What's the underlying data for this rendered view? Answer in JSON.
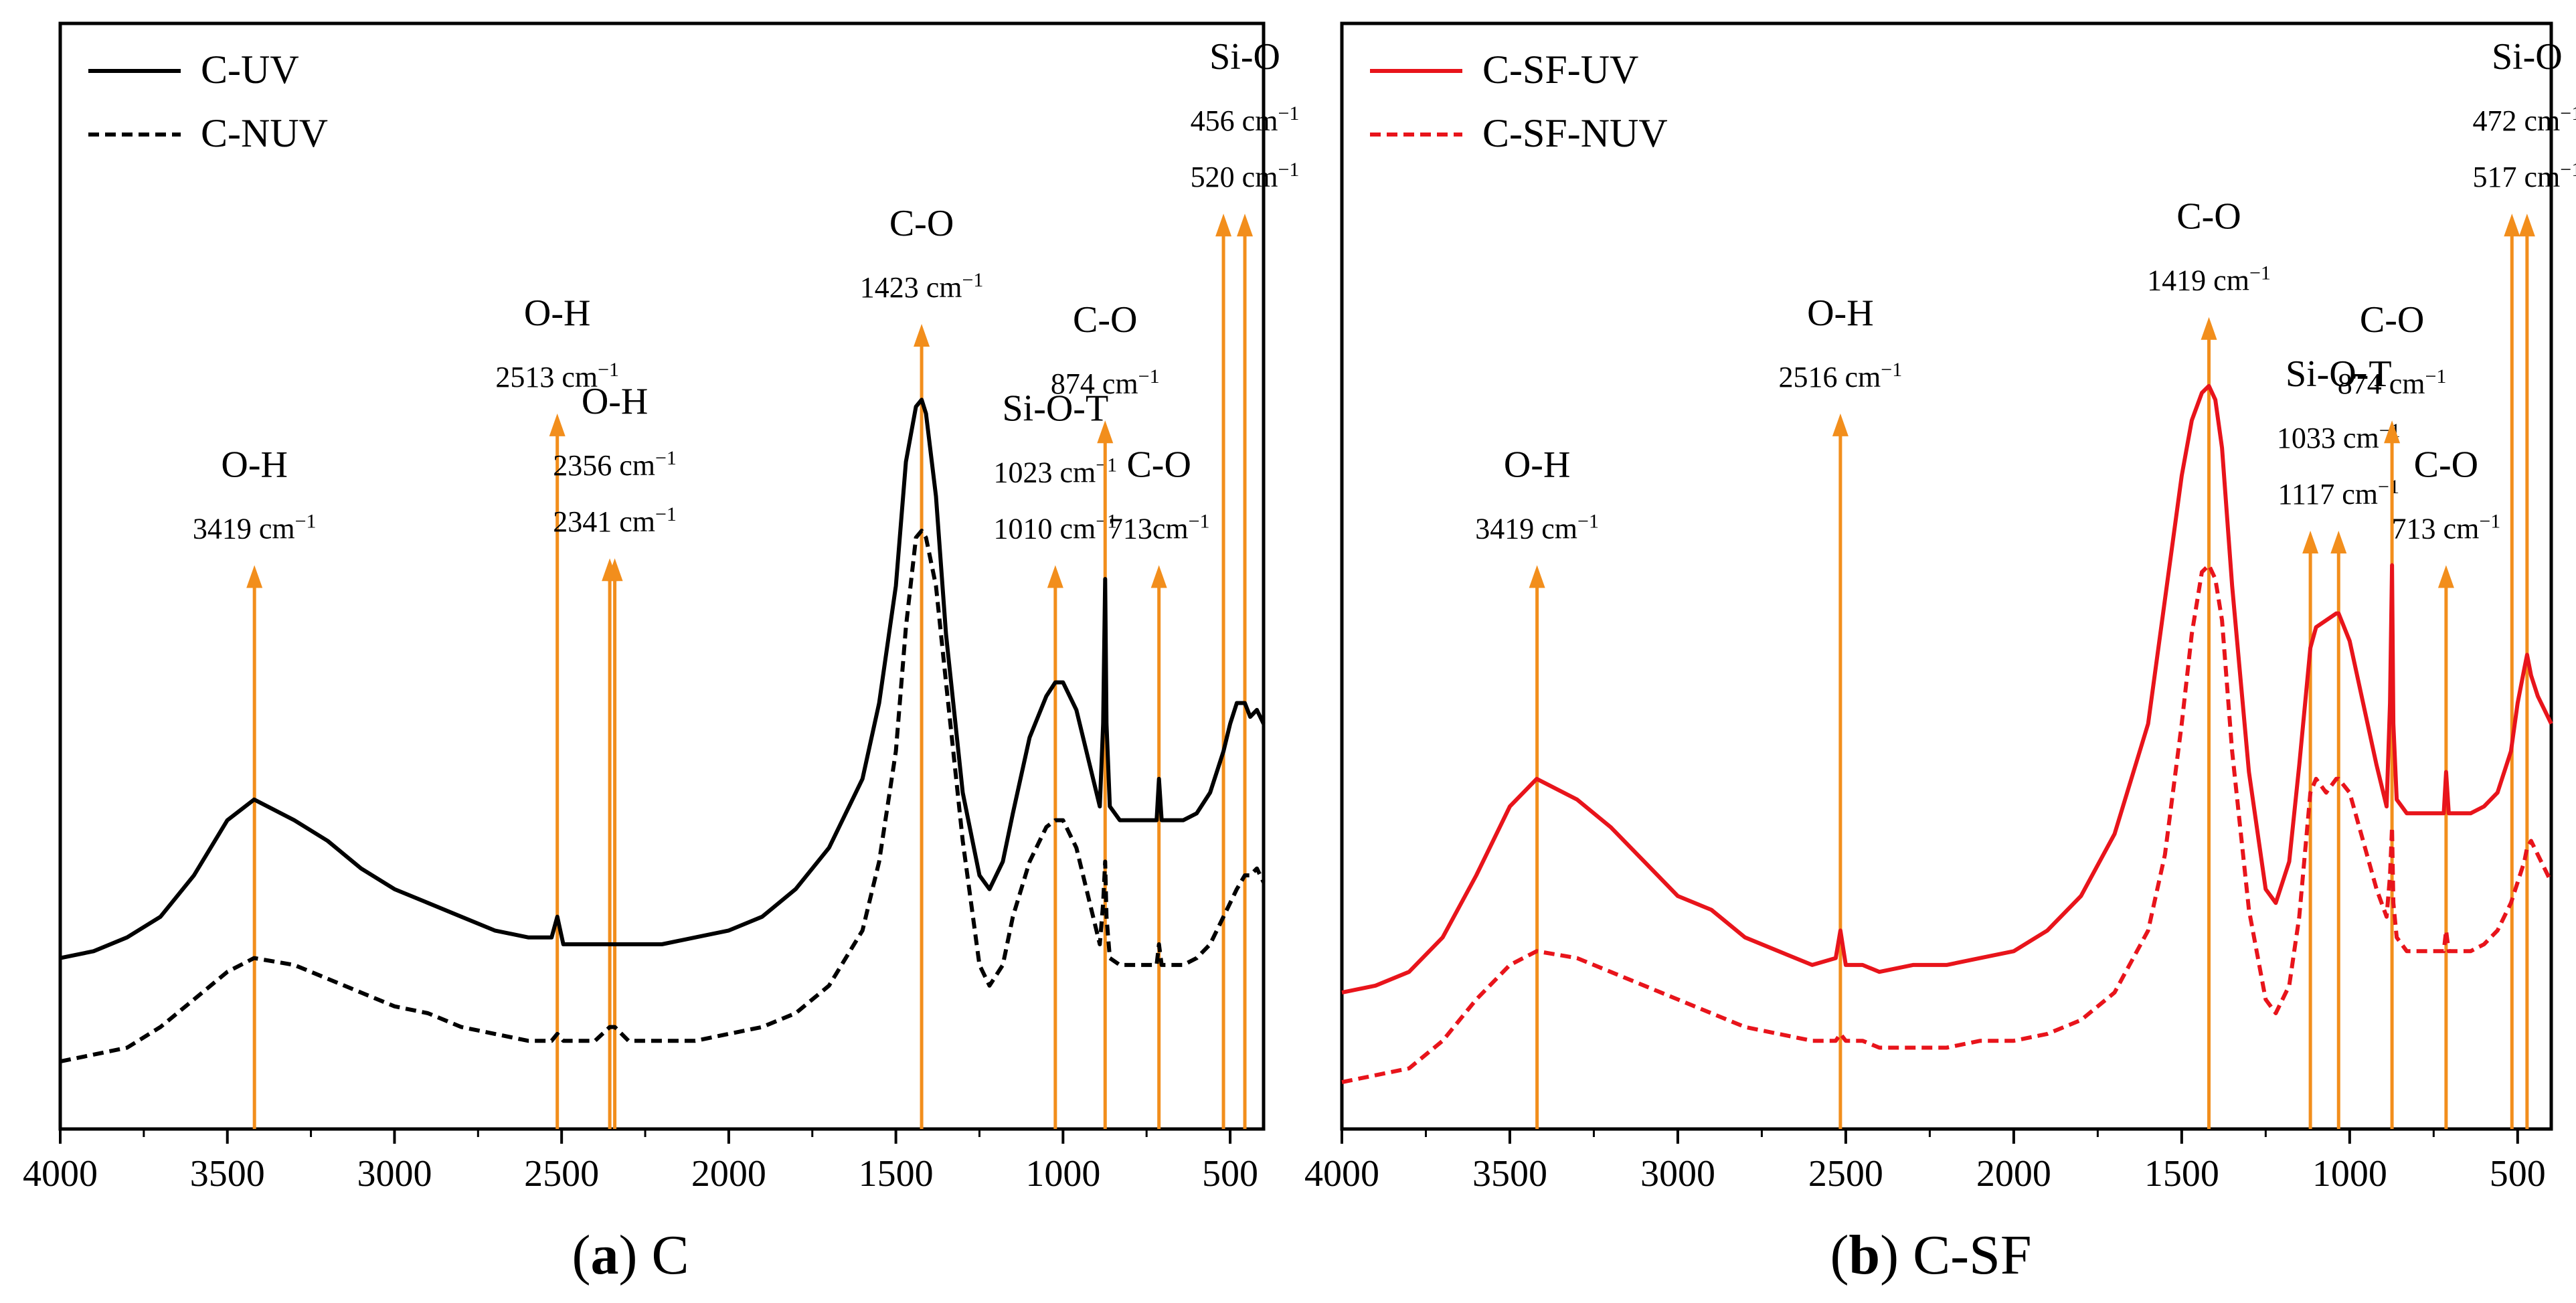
{
  "chart_data": [
    {
      "type": "line",
      "panel_id": "a",
      "panel_name": "C",
      "xlabel": "",
      "ylabel": "",
      "xlim": [
        4000,
        400
      ],
      "x_ticks": [
        4000,
        3500,
        3000,
        2500,
        2000,
        1500,
        1000,
        500
      ],
      "y_ticks": [],
      "grid": false,
      "legend_position": "top-left",
      "line_color": "#000000",
      "marker_color": "#F28E1C",
      "series": [
        {
          "name": "C-UV",
          "style": "solid",
          "x": [
            4000,
            3900,
            3800,
            3700,
            3600,
            3500,
            3420,
            3300,
            3200,
            3100,
            3000,
            2900,
            2800,
            2700,
            2600,
            2530,
            2513,
            2495,
            2450,
            2400,
            2300,
            2200,
            2100,
            2000,
            1900,
            1800,
            1700,
            1600,
            1550,
            1500,
            1470,
            1440,
            1423,
            1410,
            1380,
            1350,
            1300,
            1250,
            1220,
            1180,
            1150,
            1100,
            1050,
            1023,
            1000,
            960,
            920,
            890,
            880,
            874,
            870,
            860,
            830,
            800,
            760,
            720,
            713,
            705,
            680,
            640,
            600,
            560,
            520,
            500,
            480,
            456,
            440,
            420,
            400
          ],
          "y": [
            0.18,
            0.19,
            0.21,
            0.24,
            0.3,
            0.38,
            0.41,
            0.38,
            0.35,
            0.31,
            0.28,
            0.26,
            0.24,
            0.22,
            0.21,
            0.21,
            0.24,
            0.2,
            0.2,
            0.2,
            0.2,
            0.2,
            0.21,
            0.22,
            0.24,
            0.28,
            0.34,
            0.44,
            0.55,
            0.72,
            0.9,
            0.98,
            0.99,
            0.97,
            0.85,
            0.65,
            0.42,
            0.3,
            0.28,
            0.32,
            0.39,
            0.5,
            0.56,
            0.58,
            0.58,
            0.54,
            0.46,
            0.4,
            0.52,
            0.73,
            0.52,
            0.4,
            0.38,
            0.38,
            0.38,
            0.38,
            0.44,
            0.38,
            0.38,
            0.38,
            0.39,
            0.42,
            0.48,
            0.52,
            0.55,
            0.55,
            0.53,
            0.54,
            0.52
          ]
        },
        {
          "name": "C-NUV",
          "style": "dashed",
          "x": [
            4000,
            3900,
            3800,
            3700,
            3600,
            3500,
            3420,
            3300,
            3200,
            3100,
            3000,
            2900,
            2800,
            2700,
            2600,
            2530,
            2513,
            2495,
            2450,
            2400,
            2356,
            2341,
            2300,
            2200,
            2100,
            2000,
            1900,
            1800,
            1700,
            1600,
            1550,
            1500,
            1470,
            1440,
            1423,
            1410,
            1380,
            1350,
            1300,
            1250,
            1220,
            1180,
            1150,
            1100,
            1050,
            1023,
            1000,
            960,
            920,
            890,
            880,
            874,
            870,
            860,
            830,
            800,
            760,
            720,
            713,
            705,
            680,
            640,
            600,
            560,
            520,
            500,
            480,
            456,
            440,
            420,
            400
          ],
          "y": [
            0.03,
            0.04,
            0.05,
            0.08,
            0.12,
            0.16,
            0.18,
            0.17,
            0.15,
            0.13,
            0.11,
            0.1,
            0.08,
            0.07,
            0.06,
            0.06,
            0.07,
            0.06,
            0.06,
            0.06,
            0.08,
            0.08,
            0.06,
            0.06,
            0.06,
            0.07,
            0.08,
            0.1,
            0.14,
            0.22,
            0.32,
            0.48,
            0.66,
            0.79,
            0.8,
            0.79,
            0.72,
            0.58,
            0.35,
            0.17,
            0.14,
            0.17,
            0.24,
            0.32,
            0.37,
            0.38,
            0.38,
            0.34,
            0.26,
            0.2,
            0.26,
            0.32,
            0.24,
            0.18,
            0.17,
            0.17,
            0.17,
            0.17,
            0.2,
            0.17,
            0.17,
            0.17,
            0.18,
            0.2,
            0.24,
            0.26,
            0.28,
            0.3,
            0.3,
            0.31,
            0.29
          ]
        }
      ],
      "annotations": [
        {
          "wavenumber": 3419,
          "top": 0.75,
          "labels": [
            "O-H",
            "3419 cm"
          ]
        },
        {
          "wavenumber": 2513,
          "top": 0.97,
          "labels": [
            "O-H",
            "2513 cm"
          ]
        },
        {
          "wavenumber": 2356,
          "top": 0.76,
          "labels": []
        },
        {
          "wavenumber": 2341,
          "top": 0.76,
          "labels": [
            "O-H",
            "2356 cm",
            "2341 cm"
          ]
        },
        {
          "wavenumber": 1423,
          "top": 1.1,
          "labels": [
            "C-O",
            "1423 cm"
          ]
        },
        {
          "wavenumber": 1023,
          "top": 0.75,
          "labels": [
            "Si-O-T",
            "1023 cm",
            "1010 cm"
          ]
        },
        {
          "wavenumber": 874,
          "top": 0.96,
          "labels": [
            "C-O",
            "874 cm"
          ]
        },
        {
          "wavenumber": 713,
          "top": 0.75,
          "labels": [
            "C-O",
            "713cm"
          ]
        },
        {
          "wavenumber": 520,
          "top": 1.26,
          "labels": []
        },
        {
          "wavenumber": 456,
          "top": 1.26,
          "labels": [
            "Si-O",
            "456 cm",
            "520 cm"
          ]
        }
      ],
      "unit_superscript": "−1"
    },
    {
      "type": "line",
      "panel_id": "b",
      "panel_name": "C-SF",
      "xlabel": "",
      "ylabel": "",
      "xlim": [
        4000,
        400
      ],
      "x_ticks": [
        4000,
        3500,
        3000,
        2500,
        2000,
        1500,
        1000,
        500
      ],
      "y_ticks": [],
      "grid": false,
      "legend_position": "top-left",
      "line_color": "#E8141B",
      "marker_color": "#F28E1C",
      "series": [
        {
          "name": "C-SF-UV",
          "style": "solid",
          "x": [
            4000,
            3900,
            3800,
            3700,
            3600,
            3500,
            3420,
            3300,
            3200,
            3100,
            3000,
            2900,
            2800,
            2700,
            2600,
            2530,
            2516,
            2500,
            2450,
            2400,
            2300,
            2200,
            2100,
            2000,
            1900,
            1800,
            1700,
            1600,
            1550,
            1500,
            1470,
            1440,
            1419,
            1400,
            1380,
            1350,
            1300,
            1250,
            1220,
            1180,
            1150,
            1117,
            1100,
            1070,
            1040,
            1033,
            1000,
            960,
            920,
            890,
            880,
            874,
            870,
            860,
            830,
            800,
            760,
            720,
            713,
            705,
            680,
            640,
            600,
            560,
            520,
            500,
            480,
            472,
            460,
            440,
            420,
            400
          ],
          "y": [
            0.13,
            0.14,
            0.16,
            0.21,
            0.3,
            0.4,
            0.44,
            0.41,
            0.37,
            0.32,
            0.27,
            0.25,
            0.21,
            0.19,
            0.17,
            0.18,
            0.22,
            0.17,
            0.17,
            0.16,
            0.17,
            0.17,
            0.18,
            0.19,
            0.22,
            0.27,
            0.36,
            0.52,
            0.7,
            0.88,
            0.96,
            1.0,
            1.01,
            0.99,
            0.92,
            0.72,
            0.45,
            0.28,
            0.26,
            0.32,
            0.46,
            0.63,
            0.66,
            0.67,
            0.68,
            0.68,
            0.64,
            0.55,
            0.46,
            0.4,
            0.55,
            0.75,
            0.52,
            0.41,
            0.39,
            0.39,
            0.39,
            0.39,
            0.45,
            0.39,
            0.39,
            0.39,
            0.4,
            0.42,
            0.48,
            0.55,
            0.6,
            0.62,
            0.59,
            0.56,
            0.54,
            0.52
          ]
        },
        {
          "name": "C-SF-NUV",
          "style": "dashed",
          "x": [
            4000,
            3900,
            3800,
            3700,
            3600,
            3500,
            3420,
            3300,
            3200,
            3100,
            3000,
            2900,
            2800,
            2700,
            2600,
            2530,
            2516,
            2500,
            2450,
            2400,
            2300,
            2200,
            2100,
            2000,
            1900,
            1800,
            1700,
            1600,
            1550,
            1500,
            1470,
            1440,
            1419,
            1400,
            1380,
            1350,
            1300,
            1250,
            1220,
            1180,
            1150,
            1117,
            1100,
            1070,
            1040,
            1033,
            1000,
            960,
            920,
            890,
            880,
            874,
            870,
            860,
            830,
            800,
            760,
            720,
            713,
            705,
            680,
            640,
            600,
            560,
            520,
            500,
            480,
            472,
            460,
            440,
            420,
            400
          ],
          "y": [
            0.0,
            0.01,
            0.02,
            0.06,
            0.12,
            0.17,
            0.19,
            0.18,
            0.16,
            0.14,
            0.12,
            0.1,
            0.08,
            0.07,
            0.06,
            0.06,
            0.07,
            0.06,
            0.06,
            0.05,
            0.05,
            0.05,
            0.06,
            0.06,
            0.07,
            0.09,
            0.13,
            0.22,
            0.33,
            0.52,
            0.65,
            0.74,
            0.75,
            0.73,
            0.67,
            0.48,
            0.25,
            0.12,
            0.1,
            0.14,
            0.24,
            0.42,
            0.44,
            0.42,
            0.44,
            0.44,
            0.42,
            0.35,
            0.28,
            0.24,
            0.3,
            0.37,
            0.26,
            0.21,
            0.19,
            0.19,
            0.19,
            0.19,
            0.22,
            0.19,
            0.19,
            0.19,
            0.2,
            0.22,
            0.26,
            0.29,
            0.32,
            0.34,
            0.35,
            0.33,
            0.31,
            0.29
          ]
        }
      ],
      "annotations": [
        {
          "wavenumber": 3419,
          "top": 0.75,
          "labels": [
            "O-H",
            "3419 cm"
          ]
        },
        {
          "wavenumber": 2516,
          "top": 0.97,
          "labels": [
            "O-H",
            "2516 cm"
          ]
        },
        {
          "wavenumber": 1419,
          "top": 1.11,
          "labels": [
            "C-O",
            "1419 cm"
          ]
        },
        {
          "wavenumber": 1117,
          "top": 0.8,
          "labels": []
        },
        {
          "wavenumber": 1033,
          "top": 0.8,
          "labels": [
            "Si-O-T",
            "1033 cm",
            "1117 cm"
          ]
        },
        {
          "wavenumber": 874,
          "top": 0.96,
          "labels": [
            "C-O",
            "874 cm"
          ]
        },
        {
          "wavenumber": 713,
          "top": 0.75,
          "labels": [
            "C-O",
            "713 cm"
          ]
        },
        {
          "wavenumber": 517,
          "top": 1.26,
          "labels": []
        },
        {
          "wavenumber": 472,
          "top": 1.26,
          "labels": [
            "Si-O",
            "472 cm",
            "517 cm"
          ]
        }
      ],
      "unit_superscript": "−1"
    }
  ],
  "captions": [
    {
      "letter": "a",
      "text": "C"
    },
    {
      "letter": "b",
      "text": "C-SF"
    }
  ]
}
